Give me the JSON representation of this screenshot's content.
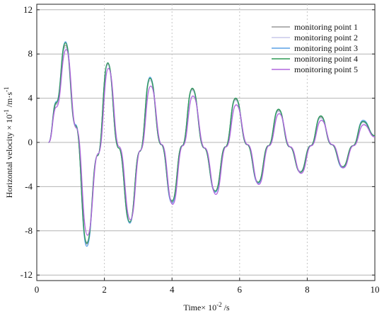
{
  "chart_data": {
    "type": "line",
    "xlabel": "Time× 10",
    "xlabel_sup": "-2",
    "xlabel_suffix": " /s",
    "ylabel": "Horizontal velocity × 10",
    "ylabel_sup": "-1",
    "ylabel_suffix": " /m·s",
    "ylabel_sup2": "-1",
    "xlim": [
      0,
      10
    ],
    "ylim": [
      -12.5,
      12.5
    ],
    "x_ticks": [
      "0",
      "2",
      "4",
      "6",
      "8",
      "10"
    ],
    "y_ticks": [
      "12",
      "8",
      "4",
      "0",
      "-4",
      "-8",
      "-12"
    ],
    "grid": "horizontal solid, vertical dashed",
    "legend_position": "top-right",
    "series": [
      {
        "name": "monitoring point 1",
        "color": "#9a9a9a",
        "x": [
          0.35,
          0.58,
          0.85,
          1.15,
          1.48,
          1.8,
          2.1,
          2.42,
          2.75,
          3.05,
          3.35,
          3.68,
          4.0,
          4.3,
          4.6,
          4.95,
          5.28,
          5.58,
          5.88,
          6.22,
          6.55,
          6.85,
          7.15,
          7.48,
          7.8,
          8.1,
          8.4,
          8.72,
          9.05,
          9.35,
          9.65,
          10.0
        ],
        "y": [
          0,
          3.5,
          8.8,
          1.5,
          -9.2,
          -1.2,
          7.1,
          -0.5,
          -7.3,
          -0.8,
          5.8,
          -0.2,
          -5.4,
          -0.3,
          4.8,
          -0.5,
          -4.5,
          -0.4,
          3.9,
          -0.2,
          -3.7,
          -0.3,
          2.9,
          -0.4,
          -2.7,
          -0.3,
          2.3,
          -0.2,
          -2.3,
          -0.3,
          1.9,
          0.6
        ]
      },
      {
        "name": "monitoring point 2",
        "color": "#c8c8ea",
        "x": [
          0.35,
          0.58,
          0.85,
          1.15,
          1.48,
          1.8,
          2.1,
          2.42,
          2.75,
          3.05,
          3.35,
          3.68,
          4.0,
          4.3,
          4.6,
          4.95,
          5.28,
          5.58,
          5.88,
          6.22,
          6.55,
          6.85,
          7.15,
          7.48,
          7.8,
          8.1,
          8.4,
          8.72,
          9.05,
          9.35,
          9.65,
          10.0
        ],
        "y": [
          0,
          3.4,
          8.6,
          1.4,
          -9.0,
          -1.1,
          7.0,
          -0.5,
          -7.2,
          -0.8,
          5.6,
          -0.2,
          -5.3,
          -0.3,
          4.7,
          -0.5,
          -4.4,
          -0.4,
          3.8,
          -0.2,
          -3.6,
          -0.3,
          2.8,
          -0.4,
          -2.6,
          -0.3,
          2.2,
          -0.2,
          -2.2,
          -0.3,
          1.8,
          0.6
        ]
      },
      {
        "name": "monitoring point 3",
        "color": "#5aa0e6",
        "x": [
          0.35,
          0.58,
          0.85,
          1.15,
          1.48,
          1.8,
          2.1,
          2.42,
          2.75,
          3.05,
          3.35,
          3.68,
          4.0,
          4.3,
          4.6,
          4.95,
          5.28,
          5.58,
          5.88,
          6.22,
          6.55,
          6.85,
          7.15,
          7.48,
          7.8,
          8.1,
          8.4,
          8.72,
          9.05,
          9.35,
          9.65,
          10.0
        ],
        "y": [
          0,
          3.7,
          9.1,
          1.6,
          -9.4,
          -1.2,
          7.2,
          -0.5,
          -7.3,
          -0.8,
          5.9,
          -0.2,
          -5.5,
          -0.3,
          4.9,
          -0.5,
          -4.5,
          -0.4,
          4.0,
          -0.2,
          -3.7,
          -0.3,
          3.0,
          -0.4,
          -2.7,
          -0.3,
          2.4,
          -0.2,
          -2.3,
          -0.3,
          2.0,
          0.6
        ]
      },
      {
        "name": "monitoring point 4",
        "color": "#2e9a55",
        "x": [
          0.35,
          0.58,
          0.85,
          1.15,
          1.48,
          1.8,
          2.1,
          2.42,
          2.75,
          3.05,
          3.35,
          3.68,
          4.0,
          4.3,
          4.6,
          4.95,
          5.28,
          5.58,
          5.88,
          6.22,
          6.55,
          6.85,
          7.15,
          7.48,
          7.8,
          8.1,
          8.4,
          8.72,
          9.05,
          9.35,
          9.65,
          10.0
        ],
        "y": [
          0,
          3.6,
          9.0,
          1.5,
          -9.1,
          -1.2,
          7.2,
          -0.5,
          -7.2,
          -0.8,
          5.8,
          -0.2,
          -5.3,
          -0.3,
          4.9,
          -0.5,
          -4.4,
          -0.4,
          4.0,
          -0.2,
          -3.6,
          -0.3,
          3.0,
          -0.4,
          -2.7,
          -0.3,
          2.4,
          -0.2,
          -2.2,
          -0.3,
          1.9,
          0.6
        ]
      },
      {
        "name": "monitoring point 5",
        "color": "#b066dd",
        "x": [
          0.35,
          0.58,
          0.87,
          1.17,
          1.5,
          1.82,
          2.12,
          2.44,
          2.77,
          3.07,
          3.37,
          3.7,
          4.02,
          4.32,
          4.62,
          4.97,
          5.3,
          5.6,
          5.9,
          6.24,
          6.57,
          6.87,
          7.17,
          7.5,
          7.82,
          8.12,
          8.42,
          8.74,
          9.07,
          9.37,
          9.67,
          10.0
        ],
        "y": [
          0,
          3.2,
          8.4,
          1.3,
          -8.4,
          -1.0,
          6.7,
          -0.4,
          -7.0,
          -0.7,
          5.1,
          -0.2,
          -5.6,
          -0.3,
          4.2,
          -0.5,
          -4.7,
          -0.4,
          3.4,
          -0.2,
          -3.8,
          -0.3,
          2.6,
          -0.4,
          -2.8,
          -0.3,
          2.0,
          -0.2,
          -2.3,
          -0.3,
          1.6,
          0.5
        ]
      }
    ]
  }
}
